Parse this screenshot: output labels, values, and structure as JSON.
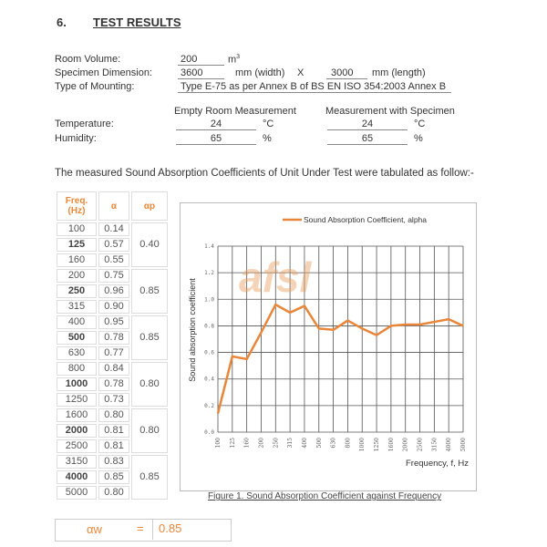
{
  "section": {
    "number": "6.",
    "title": "TEST RESULTS"
  },
  "room_volume": {
    "label": "Room Volume:",
    "value": "200",
    "unit": "m",
    "unit_sup": "3"
  },
  "specimen": {
    "label": "Specimen Dimension:",
    "width": "3600",
    "width_unit": "mm (width)",
    "x": "X",
    "length": "3000",
    "length_unit": "mm (length)"
  },
  "mounting": {
    "label": "Type of Mounting:",
    "value": "Type E-75 as per Annex B of BS EN ISO 354:2003 Annex B"
  },
  "conditions": {
    "empty_header": "Empty Room Measurement",
    "specimen_header": "Measurement with Specimen",
    "temperature": {
      "label": "Temperature:",
      "empty": "24",
      "specimen": "24",
      "unit": "°C"
    },
    "humidity": {
      "label": "Humidity:",
      "empty": "65",
      "specimen": "65",
      "unit": "%"
    }
  },
  "intro": "The measured Sound Absorption Coefficients of Unit Under Test were tabulated as follow:-",
  "table": {
    "headers": [
      "Freq. (Hz)",
      "α",
      "αp"
    ],
    "rows": [
      [
        "100",
        "0.14"
      ],
      [
        "125",
        "0.57"
      ],
      [
        "160",
        "0.55"
      ],
      [
        "200",
        "0.75"
      ],
      [
        "250",
        "0.96"
      ],
      [
        "315",
        "0.90"
      ],
      [
        "400",
        "0.95"
      ],
      [
        "500",
        "0.78"
      ],
      [
        "630",
        "0.77"
      ],
      [
        "800",
        "0.84"
      ],
      [
        "1000",
        "0.78"
      ],
      [
        "1250",
        "0.73"
      ],
      [
        "1600",
        "0.80"
      ],
      [
        "2000",
        "0.81"
      ],
      [
        "2500",
        "0.81"
      ],
      [
        "3150",
        "0.83"
      ],
      [
        "4000",
        "0.85"
      ],
      [
        "5000",
        "0.80"
      ]
    ],
    "alpha_p": [
      "0.40",
      "0.85",
      "0.85",
      "0.80",
      "0.80",
      "0.85"
    ]
  },
  "weighted": {
    "label": "αw",
    "eq": "=",
    "value": "0.85"
  },
  "chart_data": {
    "type": "line",
    "categories": [
      "100",
      "125",
      "160",
      "200",
      "250",
      "315",
      "400",
      "500",
      "630",
      "800",
      "1000",
      "1250",
      "1600",
      "2000",
      "2500",
      "3150",
      "4000",
      "5000"
    ],
    "series": [
      {
        "name": "Sound Absorption Coefficient, alpha",
        "values": [
          0.14,
          0.57,
          0.55,
          0.75,
          0.96,
          0.9,
          0.95,
          0.78,
          0.77,
          0.84,
          0.78,
          0.73,
          0.8,
          0.81,
          0.81,
          0.83,
          0.85,
          0.8
        ],
        "color": "#e8863a"
      }
    ],
    "xlabel": "Frequency, f, Hz",
    "ylabel": "Sound absorption coefficient",
    "ylim": [
      0,
      1.4
    ],
    "yticks": [
      "0.0",
      "0.2",
      "0.4",
      "0.6",
      "0.8",
      "1.0",
      "1.2",
      "1.4"
    ],
    "grid": true,
    "legend": "top-right",
    "caption": "Figure 1. Sound Absorption Coefficient against Frequency",
    "watermark": "afsl"
  }
}
